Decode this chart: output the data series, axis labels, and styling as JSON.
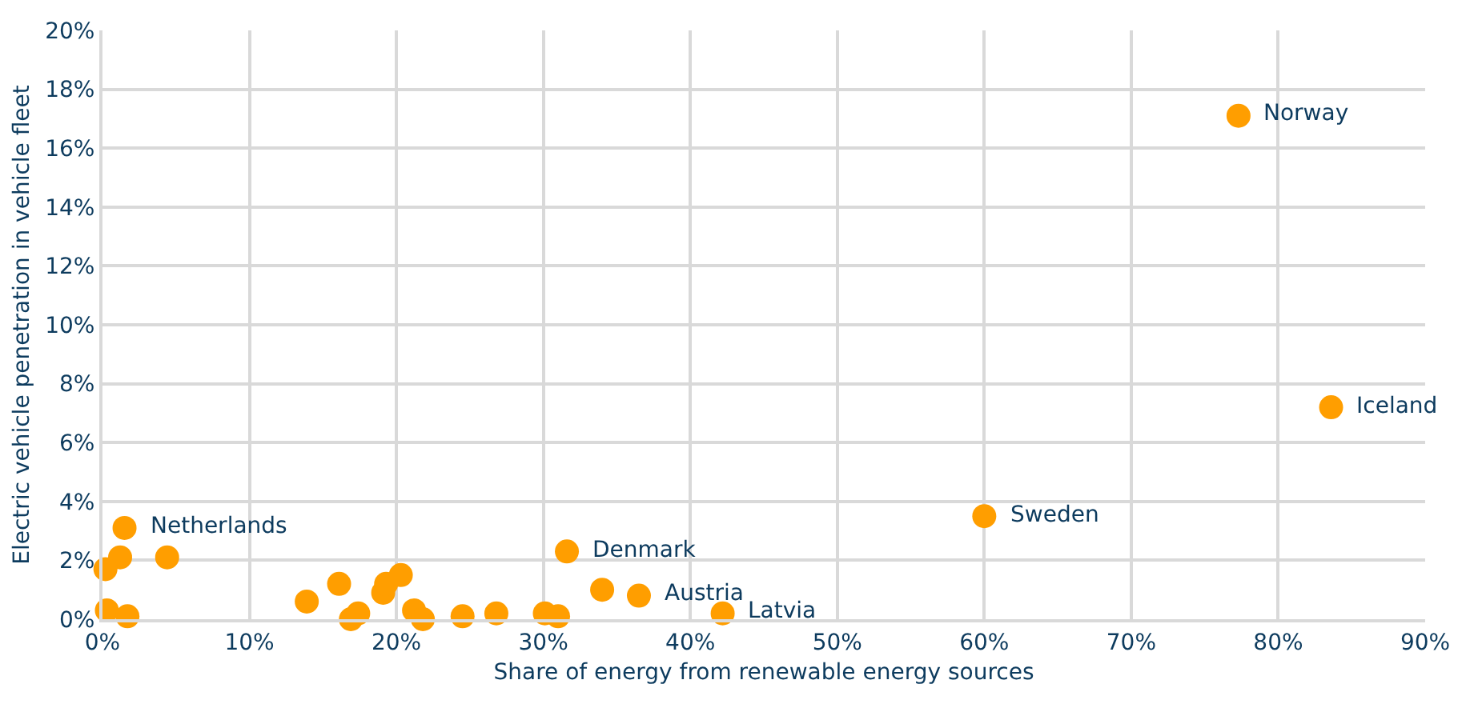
{
  "chart_data": {
    "type": "scatter",
    "xlabel": "Share of energy from renewable energy sources",
    "ylabel": "Electric vehicle penetration in vehicle fleet",
    "x": [
      1.5,
      1.2,
      0.2,
      4.4,
      0.3,
      1.7,
      13.9,
      16.1,
      16.9,
      17.4,
      19.1,
      19.3,
      20.3,
      21.2,
      21.8,
      24.5,
      26.8,
      30.1,
      31.0,
      31.6,
      34.0,
      36.5,
      42.2,
      60.0,
      77.3,
      83.6
    ],
    "series": [
      {
        "color": "#ff9e00",
        "values": [
          3.1,
          2.1,
          1.7,
          2.1,
          0.3,
          0.1,
          0.6,
          1.2,
          0.0,
          0.2,
          0.9,
          1.2,
          1.5,
          0.3,
          0.0,
          0.1,
          0.2,
          0.2,
          0.1,
          2.3,
          1.0,
          0.8,
          0.2,
          3.5,
          17.1,
          7.2
        ]
      }
    ],
    "annotations": [
      {
        "text": "Netherlands",
        "x": 1.5,
        "y": 3.1
      },
      {
        "text": "Denmark",
        "x": 31.6,
        "y": 2.3
      },
      {
        "text": "Austria",
        "x": 36.5,
        "y": 0.8
      },
      {
        "text": "Latvia",
        "x": 42.2,
        "y": 0.2
      },
      {
        "text": "Sweden",
        "x": 60.0,
        "y": 3.5
      },
      {
        "text": "Norway",
        "x": 77.3,
        "y": 17.1
      },
      {
        "text": "Iceland",
        "x": 83.6,
        "y": 7.2
      }
    ],
    "xlim": [
      0,
      90
    ],
    "xticks": [
      {
        "value": 0,
        "label": "0%"
      },
      {
        "value": 10,
        "label": "10%"
      },
      {
        "value": 20,
        "label": "20%"
      },
      {
        "value": 30,
        "label": "30%"
      },
      {
        "value": 40,
        "label": "40%"
      },
      {
        "value": 50,
        "label": "50%"
      },
      {
        "value": 60,
        "label": "60%"
      },
      {
        "value": 70,
        "label": "70%"
      },
      {
        "value": 80,
        "label": "80%"
      },
      {
        "value": 90,
        "label": "90%"
      }
    ],
    "ylim": [
      0,
      20
    ],
    "yticks": [
      {
        "value": 0,
        "label": "0%"
      },
      {
        "value": 2,
        "label": "2%"
      },
      {
        "value": 4,
        "label": "4%"
      },
      {
        "value": 6,
        "label": "6%"
      },
      {
        "value": 8,
        "label": "8%"
      },
      {
        "value": 10,
        "label": "10%"
      },
      {
        "value": 12,
        "label": "12%"
      },
      {
        "value": 14,
        "label": "14%"
      },
      {
        "value": 16,
        "label": "16%"
      },
      {
        "value": 18,
        "label": "18%"
      },
      {
        "value": 20,
        "label": "20%"
      }
    ],
    "grid": true,
    "marker": "circle"
  }
}
